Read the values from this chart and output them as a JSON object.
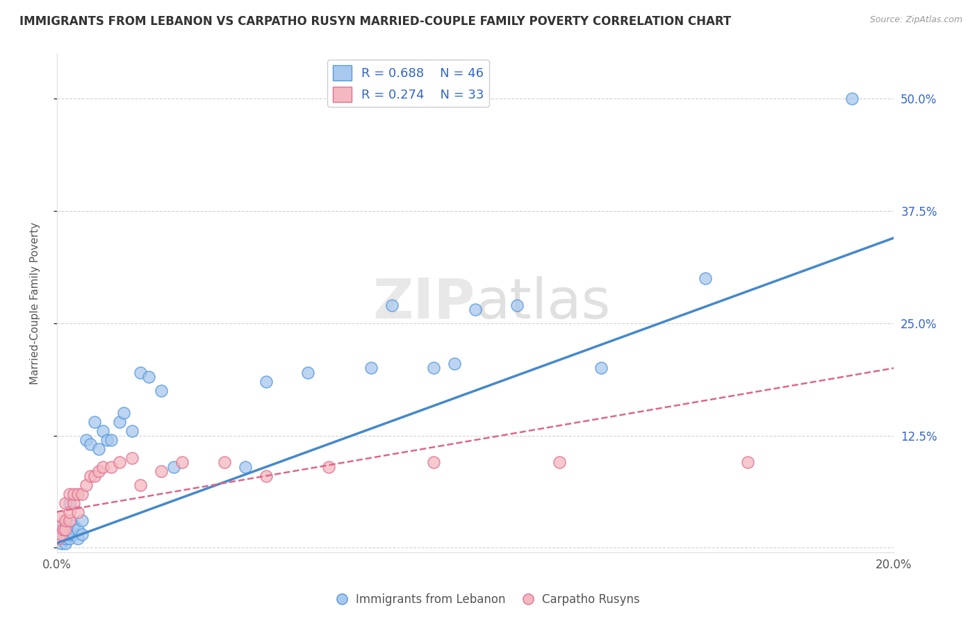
{
  "title": "IMMIGRANTS FROM LEBANON VS CARPATHO RUSYN MARRIED-COUPLE FAMILY POVERTY CORRELATION CHART",
  "source": "Source: ZipAtlas.com",
  "ylabel": "Married-Couple Family Poverty",
  "xlim": [
    0.0,
    0.2
  ],
  "ylim": [
    -0.005,
    0.55
  ],
  "xtick_positions": [
    0.0,
    0.05,
    0.1,
    0.15,
    0.2
  ],
  "xtick_labels": [
    "0.0%",
    "",
    "",
    "",
    "20.0%"
  ],
  "ytick_positions": [
    0.0,
    0.125,
    0.25,
    0.375,
    0.5
  ],
  "ytick_labels_right": [
    "",
    "12.5%",
    "25.0%",
    "37.5%",
    "50.0%"
  ],
  "legend_r1": "R = 0.688",
  "legend_n1": "N = 46",
  "legend_r2": "R = 0.274",
  "legend_n2": "N = 33",
  "color_blue": "#A8C8EE",
  "color_pink": "#F4B8C0",
  "color_blue_edge": "#5599DD",
  "color_pink_edge": "#E07090",
  "color_blue_line": "#4488CC",
  "color_pink_line": "#DD6688",
  "color_legend_text": "#3366CC",
  "background_color": "#FFFFFF",
  "grid_color": "#CCCCCC",
  "blue_scatter_x": [
    0.0005,
    0.001,
    0.001,
    0.001,
    0.0015,
    0.0015,
    0.002,
    0.002,
    0.002,
    0.002,
    0.0025,
    0.003,
    0.003,
    0.003,
    0.004,
    0.004,
    0.005,
    0.005,
    0.006,
    0.006,
    0.007,
    0.008,
    0.009,
    0.01,
    0.011,
    0.012,
    0.013,
    0.015,
    0.016,
    0.018,
    0.02,
    0.022,
    0.025,
    0.028,
    0.045,
    0.05,
    0.06,
    0.075,
    0.08,
    0.09,
    0.095,
    0.1,
    0.11,
    0.13,
    0.155,
    0.19
  ],
  "blue_scatter_y": [
    0.01,
    0.005,
    0.015,
    0.02,
    0.015,
    0.025,
    0.005,
    0.01,
    0.015,
    0.02,
    0.02,
    0.01,
    0.015,
    0.05,
    0.015,
    0.025,
    0.01,
    0.02,
    0.015,
    0.03,
    0.12,
    0.115,
    0.14,
    0.11,
    0.13,
    0.12,
    0.12,
    0.14,
    0.15,
    0.13,
    0.195,
    0.19,
    0.175,
    0.09,
    0.09,
    0.185,
    0.195,
    0.2,
    0.27,
    0.2,
    0.205,
    0.265,
    0.27,
    0.2,
    0.3,
    0.5
  ],
  "pink_scatter_x": [
    0.0005,
    0.001,
    0.001,
    0.001,
    0.0015,
    0.002,
    0.002,
    0.002,
    0.003,
    0.003,
    0.003,
    0.004,
    0.004,
    0.005,
    0.005,
    0.006,
    0.007,
    0.008,
    0.009,
    0.01,
    0.011,
    0.013,
    0.015,
    0.018,
    0.02,
    0.025,
    0.03,
    0.04,
    0.05,
    0.065,
    0.09,
    0.12,
    0.165
  ],
  "pink_scatter_y": [
    0.01,
    0.015,
    0.025,
    0.035,
    0.02,
    0.02,
    0.03,
    0.05,
    0.03,
    0.04,
    0.06,
    0.05,
    0.06,
    0.04,
    0.06,
    0.06,
    0.07,
    0.08,
    0.08,
    0.085,
    0.09,
    0.09,
    0.095,
    0.1,
    0.07,
    0.085,
    0.095,
    0.095,
    0.08,
    0.09,
    0.095,
    0.095,
    0.095
  ],
  "blue_line_x0": 0.0,
  "blue_line_y0": 0.005,
  "blue_line_x1": 0.2,
  "blue_line_y1": 0.345,
  "pink_line_x0": 0.0,
  "pink_line_y0": 0.04,
  "pink_line_x1": 0.2,
  "pink_line_y1": 0.2
}
